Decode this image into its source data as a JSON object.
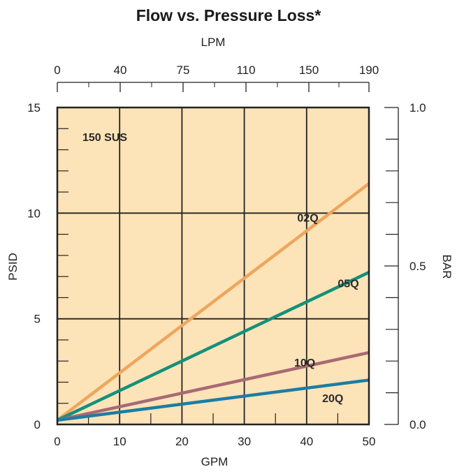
{
  "chart_data": {
    "type": "line",
    "title": "Flow vs. Pressure Loss*",
    "xlabel": "GPM",
    "ylabel": "PSID",
    "x_ticks": [
      0,
      10,
      20,
      30,
      40,
      50
    ],
    "xlim": [
      0,
      50
    ],
    "y_ticks": [
      0,
      5,
      10,
      15
    ],
    "ylim": [
      0,
      15
    ],
    "grid": true,
    "background_color": "#fde3b8",
    "annotation": "150 SUS",
    "secondary_x": {
      "label": "LPM",
      "tick_labels": [
        "0",
        "40",
        "75",
        "110",
        "150",
        "190"
      ]
    },
    "secondary_y": {
      "label": "BAR",
      "tick_labels": [
        "0.0",
        "0.5",
        "1.0"
      ]
    },
    "series": [
      {
        "name": "02Q",
        "color": "#eea65c",
        "x": [
          0,
          50
        ],
        "y": [
          0.2,
          11.4
        ]
      },
      {
        "name": "05Q",
        "color": "#13907a",
        "x": [
          0,
          50
        ],
        "y": [
          0.2,
          7.2
        ]
      },
      {
        "name": "10Q",
        "color": "#a86a74",
        "x": [
          0,
          50
        ],
        "y": [
          0.2,
          3.4
        ]
      },
      {
        "name": "20Q",
        "color": "#1b7da4",
        "x": [
          0,
          50
        ],
        "y": [
          0.2,
          2.1
        ]
      }
    ]
  }
}
